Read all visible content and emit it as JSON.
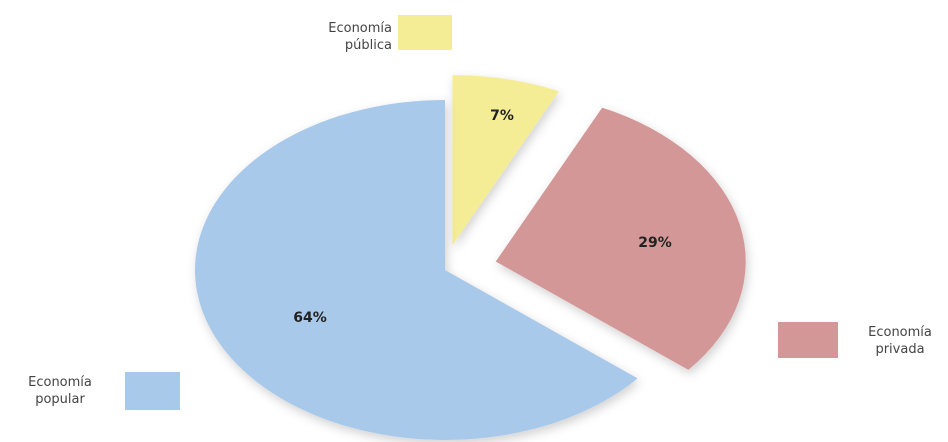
{
  "chart_data": {
    "type": "pie",
    "categories": [
      "Economía pública",
      "Economía privada",
      "Economía popular"
    ],
    "values": [
      7,
      29,
      64
    ],
    "value_labels": [
      "7%",
      "29%",
      "64%"
    ],
    "colors": [
      "#f5ec96",
      "#d39797",
      "#a9c9ea"
    ]
  }
}
